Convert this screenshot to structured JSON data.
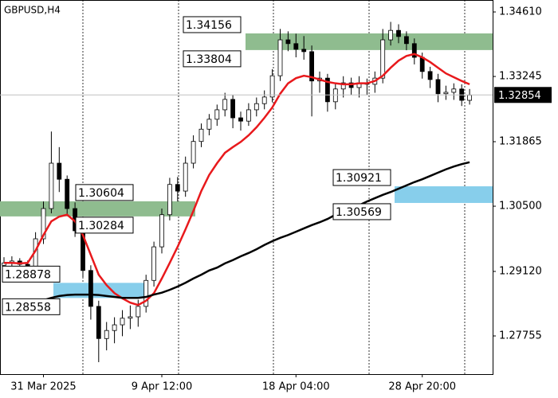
{
  "chart_data": {
    "type": "candlestick",
    "title": "GBPUSD,H4",
    "categories": [
      null,
      null,
      null,
      null,
      null,
      "31 Mar 2025",
      null,
      null,
      null,
      null,
      null,
      null,
      null,
      null,
      null,
      null,
      null,
      null,
      null,
      null,
      "9 Apr 12:00",
      null,
      null,
      null,
      null,
      null,
      null,
      null,
      null,
      null,
      null,
      null,
      null,
      null,
      null,
      null,
      null,
      "18 Apr 04:00",
      null,
      null,
      null,
      null,
      null,
      null,
      null,
      null,
      null,
      null,
      null,
      null,
      null,
      null,
      null,
      "28 Apr 20:00",
      null,
      null,
      null,
      null,
      null,
      null
    ],
    "open": [
      1.2925,
      1.293,
      1.2934,
      1.2927,
      1.2922,
      1.2981,
      1.3045,
      1.3141,
      1.3107,
      1.3045,
      1.2998,
      1.2914,
      1.2838,
      1.277,
      1.2787,
      1.2799,
      1.2813,
      1.2816,
      1.2838,
      1.2893,
      1.2964,
      1.3032,
      1.3096,
      1.3082,
      1.3141,
      1.3187,
      1.3213,
      1.3234,
      1.3254,
      1.3276,
      1.3237,
      1.323,
      1.3254,
      1.3267,
      1.3281,
      1.3326,
      1.3402,
      1.3394,
      1.3382,
      1.3377,
      1.3315,
      1.3321,
      1.3271,
      1.3298,
      1.3311,
      1.3301,
      1.3311,
      1.3308,
      1.3321,
      1.3402,
      1.3422,
      1.3409,
      1.3394,
      1.3365,
      1.3335,
      1.3318,
      1.3288,
      1.3291,
      1.3298,
      1.3274
    ],
    "high": [
      1.2942,
      1.2944,
      1.294,
      1.2935,
      1.2995,
      1.306,
      1.3208,
      1.3175,
      1.3115,
      1.3058,
      1.301,
      1.2925,
      1.285,
      1.2805,
      1.2815,
      1.283,
      1.284,
      1.2852,
      1.2905,
      1.2975,
      1.3045,
      1.311,
      1.3112,
      1.3155,
      1.32,
      1.3225,
      1.3245,
      1.3265,
      1.329,
      1.3285,
      1.325,
      1.3268,
      1.328,
      1.3295,
      1.334,
      1.3425,
      1.342,
      1.3415,
      1.341,
      1.339,
      1.3335,
      1.333,
      1.331,
      1.3325,
      1.3322,
      1.3325,
      1.332,
      1.3335,
      1.3425,
      1.344,
      1.3435,
      1.342,
      1.3405,
      1.3375,
      1.3345,
      1.333,
      1.3305,
      1.331,
      1.3308,
      1.3298
    ],
    "low": [
      1.2915,
      1.2921,
      1.2912,
      1.2905,
      1.2915,
      1.297,
      1.3035,
      1.308,
      1.303,
      1.2985,
      1.29,
      1.281,
      1.272,
      1.2745,
      1.276,
      1.2775,
      1.279,
      1.2795,
      1.2825,
      1.288,
      1.295,
      1.302,
      1.306,
      1.307,
      1.313,
      1.3175,
      1.32,
      1.322,
      1.324,
      1.3215,
      1.321,
      1.322,
      1.324,
      1.3255,
      1.327,
      1.3315,
      1.3378,
      1.3365,
      1.336,
      1.324,
      1.329,
      1.325,
      1.3255,
      1.328,
      1.3285,
      1.328,
      1.3285,
      1.329,
      1.331,
      1.339,
      1.3395,
      1.338,
      1.335,
      1.332,
      1.33,
      1.327,
      1.3275,
      1.3275,
      1.3262,
      1.3265
    ],
    "close": [
      1.293,
      1.2934,
      1.2927,
      1.2922,
      1.2981,
      1.3045,
      1.3141,
      1.3107,
      1.3045,
      1.2998,
      1.2914,
      1.2838,
      1.277,
      1.2787,
      1.2799,
      1.2813,
      1.2816,
      1.2838,
      1.2893,
      1.2964,
      1.3032,
      1.3096,
      1.3082,
      1.3141,
      1.3187,
      1.3213,
      1.3234,
      1.3254,
      1.3276,
      1.3237,
      1.323,
      1.3254,
      1.3267,
      1.3281,
      1.3326,
      1.3402,
      1.3394,
      1.3382,
      1.3377,
      1.3315,
      1.3321,
      1.3271,
      1.3298,
      1.3311,
      1.3301,
      1.3311,
      1.3308,
      1.3321,
      1.3402,
      1.3422,
      1.3409,
      1.3394,
      1.3365,
      1.3335,
      1.3318,
      1.3288,
      1.3291,
      1.3298,
      1.3274,
      1.3285
    ],
    "overlays": [
      {
        "color": "#e8191c",
        "values": [
          1.293,
          1.293,
          1.2929,
          1.293,
          1.2956,
          1.2989,
          1.3018,
          1.3028,
          1.3032,
          1.3018,
          1.2989,
          1.2947,
          1.2905,
          1.2883,
          1.2866,
          1.2855,
          1.2846,
          1.2841,
          1.285,
          1.2866,
          1.2897,
          1.293,
          1.2964,
          1.3001,
          1.304,
          1.3082,
          1.3116,
          1.3141,
          1.3163,
          1.3175,
          1.3186,
          1.32,
          1.3217,
          1.3237,
          1.3259,
          1.3288,
          1.331,
          1.3321,
          1.3326,
          1.3323,
          1.3318,
          1.3313,
          1.331,
          1.3308,
          1.3308,
          1.331,
          1.331,
          1.3315,
          1.3326,
          1.3343,
          1.3358,
          1.3368,
          1.3372,
          1.3365,
          1.3355,
          1.3343,
          1.3331,
          1.3323,
          1.3315,
          1.3308
        ]
      },
      {
        "color": "#000000",
        "values": [
          1.2828,
          1.2831,
          1.2836,
          1.2841,
          1.2846,
          1.2851,
          1.2856,
          1.286,
          1.2862,
          1.2863,
          1.2863,
          1.2863,
          1.2862,
          1.286,
          1.2858,
          1.2856,
          1.2856,
          1.2856,
          1.2858,
          1.2863,
          1.2867,
          1.2873,
          1.288,
          1.2888,
          1.2897,
          1.2905,
          1.2914,
          1.292,
          1.2929,
          1.2936,
          1.2944,
          1.2951,
          1.2959,
          1.2968,
          1.2976,
          1.2983,
          1.2989,
          1.2996,
          1.3003,
          1.301,
          1.3016,
          1.3023,
          1.3032,
          1.3038,
          1.3045,
          1.3052,
          1.306,
          1.3067,
          1.3074,
          1.308,
          1.3087,
          1.3094,
          1.3101,
          1.3107,
          1.3114,
          1.3121,
          1.3128,
          1.3134,
          1.3139,
          1.3143
        ]
      }
    ],
    "zones": [
      {
        "high": 1.34156,
        "low": 1.33804,
        "color": "#8fbc8f"
      },
      {
        "high": 1.30604,
        "low": 1.30284,
        "color": "#8fbc8f"
      },
      {
        "high": 1.30921,
        "low": 1.30569,
        "color": "#87ceeb"
      },
      {
        "high": 1.28878,
        "low": 1.28558,
        "color": "#87ceeb"
      }
    ],
    "last_price": 1.32854,
    "ylim": [
      1.26947,
      1.34863
    ],
    "yticks": [
      {
        "value": 1.3461,
        "label": "1.34610"
      },
      1.33245,
      1.31865,
      {
        "value": 1.305,
        "label": "1.30500"
      },
      {
        "value": 1.2912,
        "label": "1.29120"
      },
      1.27755
    ]
  }
}
